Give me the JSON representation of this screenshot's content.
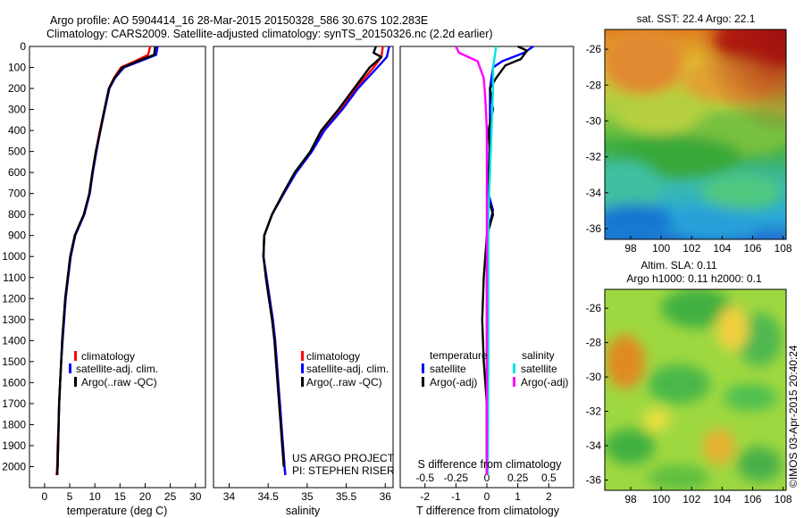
{
  "header": {
    "title": "Argo profile: AO 5904414_16 28-Mar-2015 20150328_586 30.67S 102.283E",
    "subtitle": "Climatology: CARS2009. Satellite-adjusted climatology: synTS_20150326.nc (2.2d earlier)"
  },
  "credits": {
    "project": "US ARGO PROJECT",
    "pi": "PI: STEPHEN RISER",
    "watermark": "©IMOS 03-Apr-2015 20:40:24"
  },
  "colors": {
    "climatology": "#ff0000",
    "satellite": "#0000ff",
    "argo": "#000000",
    "satellite_salinity": "#00e5e5",
    "argo_salinity": "#ff00ff"
  },
  "chart_data": [
    {
      "type": "line",
      "id": "temperature-profile",
      "xlabel": "temperature (deg C)",
      "xlim": [
        -3,
        32
      ],
      "ylim": [
        0,
        2100
      ],
      "x_ticks": [
        0,
        5,
        10,
        15,
        20,
        25,
        30
      ],
      "y_ticks": [
        0,
        100,
        200,
        300,
        400,
        500,
        600,
        700,
        800,
        900,
        1000,
        1100,
        1200,
        1300,
        1400,
        1500,
        1600,
        1700,
        1800,
        1900,
        2000
      ],
      "legend": [
        "climatology",
        "satellite-adj. clim.",
        "Argo(..raw -QC)"
      ],
      "series": [
        {
          "name": "climatology",
          "color": "#ff0000",
          "points": [
            [
              21.0,
              0
            ],
            [
              20.6,
              40
            ],
            [
              18.0,
              70
            ],
            [
              15.2,
              100
            ],
            [
              13.8,
              150
            ],
            [
              12.8,
              200
            ],
            [
              11.9,
              300
            ],
            [
              11.0,
              400
            ],
            [
              10.2,
              500
            ],
            [
              9.5,
              600
            ],
            [
              8.9,
              700
            ],
            [
              7.8,
              800
            ],
            [
              6.0,
              900
            ],
            [
              5.1,
              1000
            ],
            [
              4.6,
              1100
            ],
            [
              4.1,
              1200
            ],
            [
              3.8,
              1300
            ],
            [
              3.5,
              1400
            ],
            [
              3.3,
              1500
            ],
            [
              3.1,
              1600
            ],
            [
              2.9,
              1700
            ],
            [
              2.8,
              1800
            ],
            [
              2.6,
              1900
            ],
            [
              2.5,
              2000
            ],
            [
              2.4,
              2040
            ]
          ]
        },
        {
          "name": "satellite-adj. clim.",
          "color": "#0000ff",
          "points": [
            [
              22.5,
              0
            ],
            [
              22.2,
              40
            ],
            [
              19.0,
              70
            ],
            [
              15.8,
              100
            ],
            [
              14.0,
              150
            ],
            [
              12.9,
              200
            ],
            [
              12.0,
              300
            ],
            [
              11.1,
              400
            ],
            [
              10.3,
              500
            ],
            [
              9.6,
              600
            ],
            [
              9.0,
              700
            ],
            [
              7.9,
              800
            ],
            [
              6.1,
              900
            ],
            [
              5.2,
              1000
            ],
            [
              4.7,
              1100
            ],
            [
              4.2,
              1200
            ],
            [
              3.9,
              1300
            ],
            [
              3.6,
              1400
            ],
            [
              3.3,
              1500
            ],
            [
              3.1,
              1600
            ],
            [
              2.9,
              1700
            ],
            [
              2.8,
              1800
            ],
            [
              2.7,
              1900
            ],
            [
              2.6,
              2000
            ],
            [
              2.5,
              2040
            ]
          ]
        },
        {
          "name": "Argo(..raw -QC)",
          "color": "#000000",
          "points": [
            [
              22.0,
              0
            ],
            [
              21.8,
              40
            ],
            [
              18.5,
              70
            ],
            [
              15.5,
              100
            ],
            [
              13.9,
              150
            ],
            [
              12.8,
              200
            ],
            [
              11.9,
              300
            ],
            [
              11.1,
              400
            ],
            [
              10.2,
              500
            ],
            [
              9.5,
              600
            ],
            [
              8.9,
              700
            ],
            [
              7.8,
              800
            ],
            [
              6.0,
              900
            ],
            [
              5.1,
              1000
            ],
            [
              4.6,
              1100
            ],
            [
              4.1,
              1200
            ],
            [
              3.8,
              1300
            ],
            [
              3.5,
              1400
            ],
            [
              3.3,
              1500
            ],
            [
              3.1,
              1600
            ],
            [
              2.9,
              1700
            ],
            [
              2.8,
              1800
            ],
            [
              2.7,
              1900
            ],
            [
              2.6,
              2000
            ],
            [
              2.5,
              2040
            ]
          ]
        }
      ]
    },
    {
      "type": "line",
      "id": "salinity-profile",
      "xlabel": "salinity",
      "xlim": [
        33.8,
        36.1
      ],
      "ylim": [
        0,
        2100
      ],
      "x_ticks": [
        34,
        34.5,
        35,
        35.5,
        36
      ],
      "x_tick_labels": [
        "34",
        "34.5",
        "35",
        "35.5",
        "36"
      ],
      "legend": [
        "climatology",
        "satellite-adj. clim.",
        "Argo(..raw -QC)"
      ],
      "series": [
        {
          "name": "climatology",
          "color": "#ff0000",
          "points": [
            [
              35.97,
              0
            ],
            [
              35.95,
              50
            ],
            [
              35.85,
              100
            ],
            [
              35.62,
              200
            ],
            [
              35.42,
              300
            ],
            [
              35.2,
              400
            ],
            [
              35.05,
              500
            ],
            [
              34.85,
              600
            ],
            [
              34.7,
              700
            ],
            [
              34.55,
              800
            ],
            [
              34.45,
              900
            ],
            [
              34.44,
              1000
            ],
            [
              34.48,
              1100
            ],
            [
              34.52,
              1200
            ],
            [
              34.56,
              1300
            ],
            [
              34.59,
              1400
            ],
            [
              34.61,
              1500
            ],
            [
              34.63,
              1600
            ],
            [
              34.65,
              1700
            ],
            [
              34.67,
              1800
            ],
            [
              34.69,
              1900
            ],
            [
              34.71,
              2000
            ],
            [
              34.72,
              2040
            ]
          ]
        },
        {
          "name": "satellite-adj. clim.",
          "color": "#0000ff",
          "points": [
            [
              36.05,
              0
            ],
            [
              36.02,
              50
            ],
            [
              35.9,
              100
            ],
            [
              35.65,
              200
            ],
            [
              35.45,
              300
            ],
            [
              35.22,
              400
            ],
            [
              35.06,
              500
            ],
            [
              34.86,
              600
            ],
            [
              34.7,
              700
            ],
            [
              34.55,
              800
            ],
            [
              34.45,
              900
            ],
            [
              34.44,
              1000
            ],
            [
              34.48,
              1100
            ],
            [
              34.52,
              1200
            ],
            [
              34.56,
              1300
            ],
            [
              34.59,
              1400
            ],
            [
              34.61,
              1500
            ],
            [
              34.63,
              1600
            ],
            [
              34.65,
              1700
            ],
            [
              34.67,
              1800
            ],
            [
              34.69,
              1900
            ],
            [
              34.71,
              2000
            ],
            [
              34.72,
              2040
            ]
          ]
        },
        {
          "name": "Argo(..raw -QC)",
          "color": "#000000",
          "points": [
            [
              35.88,
              0
            ],
            [
              35.85,
              30
            ],
            [
              35.95,
              50
            ],
            [
              35.8,
              100
            ],
            [
              35.6,
              200
            ],
            [
              35.4,
              300
            ],
            [
              35.18,
              400
            ],
            [
              35.04,
              500
            ],
            [
              34.84,
              600
            ],
            [
              34.69,
              700
            ],
            [
              34.55,
              800
            ],
            [
              34.45,
              900
            ],
            [
              34.44,
              1000
            ],
            [
              34.47,
              1100
            ],
            [
              34.51,
              1200
            ],
            [
              34.55,
              1300
            ],
            [
              34.58,
              1400
            ],
            [
              34.6,
              1500
            ],
            [
              34.62,
              1600
            ],
            [
              34.64,
              1700
            ],
            [
              34.66,
              1800
            ],
            [
              34.68,
              1900
            ],
            [
              34.7,
              2000
            ]
          ]
        }
      ]
    },
    {
      "type": "line",
      "id": "difference-profile",
      "xlabel": "T difference from climatology",
      "x2label": "S difference from climatology",
      "xlim": [
        -2.8,
        2.8
      ],
      "ylim": [
        0,
        2100
      ],
      "x_ticks": [
        -2,
        -1,
        0,
        1,
        2
      ],
      "x_tick_labels": [
        "-2",
        "-1",
        "0",
        "1",
        "2"
      ],
      "x2_ticks": [
        -0.5,
        -0.25,
        0,
        0.25,
        0.5
      ],
      "x2_tick_labels": [
        "-0.5",
        "-0.25",
        "0",
        "0.25",
        "0.5"
      ],
      "legend_groups": [
        {
          "title": "temperature",
          "entries": [
            "satellite",
            "Argo(-adj)"
          ]
        },
        {
          "title": "salinity",
          "entries": [
            "satellite",
            "Argo(-adj)"
          ]
        }
      ],
      "series": [
        {
          "name": "satellite",
          "color": "#0000ff",
          "quantity": "temperature",
          "points": [
            [
              1.5,
              0
            ],
            [
              1.2,
              30
            ],
            [
              0.5,
              70
            ],
            [
              0.2,
              100
            ],
            [
              0.1,
              200
            ],
            [
              0.1,
              400
            ],
            [
              0.05,
              700
            ],
            [
              0.2,
              780
            ],
            [
              0.0,
              900
            ],
            [
              0,
              1200
            ],
            [
              0,
              1600
            ],
            [
              0,
              2040
            ]
          ]
        },
        {
          "name": "Argo(-adj)",
          "color": "#000000",
          "quantity": "temperature",
          "points": [
            [
              1.0,
              0
            ],
            [
              1.3,
              20
            ],
            [
              1.1,
              60
            ],
            [
              0.6,
              90
            ],
            [
              0.3,
              150
            ],
            [
              0.1,
              200
            ],
            [
              0.2,
              300
            ],
            [
              0.05,
              400
            ],
            [
              0.1,
              500
            ],
            [
              0.0,
              700
            ],
            [
              0.2,
              800
            ],
            [
              0.0,
              900
            ],
            [
              -0.1,
              1100
            ],
            [
              -0.15,
              1300
            ],
            [
              -0.1,
              1500
            ],
            [
              0.0,
              1700
            ],
            [
              0.0,
              2040
            ]
          ]
        },
        {
          "name": "satellite",
          "color": "#00e5e5",
          "quantity": "salinity",
          "points": [
            [
              0.3,
              0
            ],
            [
              0.25,
              50
            ],
            [
              0.2,
              100
            ],
            [
              0.2,
              200
            ],
            [
              0.15,
              400
            ],
            [
              0.1,
              600
            ],
            [
              0.05,
              800
            ],
            [
              0.05,
              1100
            ],
            [
              0.05,
              1500
            ],
            [
              0.03,
              2040
            ]
          ]
        },
        {
          "name": "Argo(-adj)",
          "color": "#ff00ff",
          "quantity": "salinity",
          "points": [
            [
              -1.0,
              0
            ],
            [
              -0.9,
              30
            ],
            [
              -0.3,
              70
            ],
            [
              -0.1,
              150
            ],
            [
              -0.05,
              250
            ],
            [
              0.0,
              400
            ],
            [
              0.0,
              800
            ],
            [
              0.0,
              1200
            ],
            [
              0.0,
              1600
            ],
            [
              0.0,
              2040
            ]
          ]
        }
      ]
    },
    {
      "type": "heatmap",
      "id": "sst-map",
      "title": "sat. SST: 22.4  Argo: 22.1",
      "x_ticks": [
        98,
        100,
        102,
        104,
        106,
        108
      ],
      "y_ticks": [
        -26,
        -28,
        -30,
        -32,
        -34,
        -36
      ],
      "xlim": [
        96.3,
        108.2
      ],
      "ylim": [
        -36.6,
        -24.9
      ],
      "grid": false
    },
    {
      "type": "heatmap",
      "id": "sla-map",
      "title": "Altim. SLA: 0.11",
      "subtitle": "Argo h1000: 0.11 h2000: 0.1",
      "x_ticks": [
        98,
        100,
        102,
        104,
        106,
        108
      ],
      "y_ticks": [
        -26,
        -28,
        -30,
        -32,
        -34,
        -36
      ],
      "xlim": [
        96.3,
        108.2
      ],
      "ylim": [
        -36.6,
        -24.9
      ],
      "grid": false
    }
  ]
}
